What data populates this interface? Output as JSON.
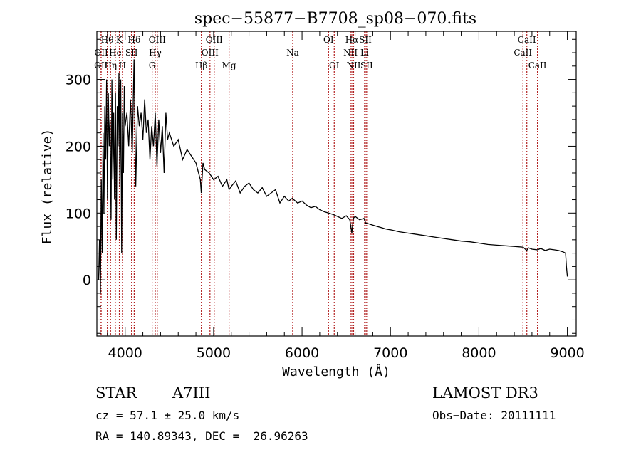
{
  "chart_data": {
    "type": "line",
    "title": "spec−55877−B7708_sp08−070.fits",
    "xlabel": "Wavelength (Å)",
    "ylabel": "Flux (relative)",
    "xlim": [
      3680,
      9100
    ],
    "ylim": [
      -84,
      372
    ],
    "xticks": [
      4000,
      5000,
      6000,
      7000,
      8000,
      9000
    ],
    "xtick_labels": [
      "4000",
      "5000",
      "6000",
      "7000",
      "8000",
      "9000"
    ],
    "yticks": [
      0,
      100,
      200,
      300
    ],
    "ytick_labels": [
      "0",
      "100",
      "200",
      "300"
    ],
    "x_minor_step": 200,
    "y_minor_step": 20,
    "grid": false,
    "series": [
      {
        "name": "spectrum",
        "color": "#000000",
        "x": [
          3700,
          3710,
          3720,
          3730,
          3740,
          3750,
          3760,
          3770,
          3780,
          3790,
          3800,
          3810,
          3820,
          3830,
          3840,
          3850,
          3860,
          3870,
          3880,
          3890,
          3900,
          3910,
          3920,
          3930,
          3940,
          3950,
          3960,
          3970,
          3980,
          3990,
          4000,
          4020,
          4040,
          4060,
          4080,
          4100,
          4120,
          4140,
          4160,
          4180,
          4200,
          4220,
          4240,
          4260,
          4280,
          4300,
          4320,
          4340,
          4360,
          4380,
          4400,
          4420,
          4440,
          4460,
          4480,
          4500,
          4550,
          4600,
          4650,
          4700,
          4750,
          4800,
          4850,
          4861,
          4880,
          4900,
          4950,
          5000,
          5050,
          5100,
          5150,
          5175,
          5200,
          5250,
          5300,
          5350,
          5400,
          5450,
          5500,
          5550,
          5600,
          5650,
          5700,
          5750,
          5800,
          5850,
          5890,
          5950,
          6000,
          6050,
          6100,
          6150,
          6200,
          6250,
          6300,
          6350,
          6400,
          6450,
          6500,
          6540,
          6563,
          6580,
          6600,
          6650,
          6700,
          6720,
          6750,
          6800,
          6850,
          6900,
          6950,
          7000,
          7100,
          7200,
          7300,
          7400,
          7500,
          7600,
          7700,
          7800,
          7900,
          8000,
          8100,
          8200,
          8300,
          8400,
          8500,
          8540,
          8560,
          8600,
          8662,
          8700,
          8750,
          8800,
          8850,
          8900,
          8950,
          8980,
          8990,
          9000
        ],
        "y": [
          0,
          60,
          -20,
          150,
          40,
          220,
          100,
          260,
          180,
          300,
          120,
          280,
          200,
          240,
          90,
          300,
          150,
          250,
          120,
          280,
          60,
          260,
          200,
          310,
          140,
          300,
          40,
          250,
          160,
          290,
          230,
          250,
          200,
          270,
          190,
          330,
          140,
          260,
          230,
          250,
          210,
          270,
          220,
          240,
          180,
          230,
          200,
          250,
          170,
          240,
          190,
          230,
          160,
          250,
          210,
          220,
          200,
          210,
          180,
          195,
          185,
          175,
          150,
          130,
          175,
          165,
          160,
          150,
          155,
          140,
          150,
          135,
          140,
          148,
          130,
          140,
          145,
          135,
          130,
          138,
          125,
          130,
          135,
          115,
          125,
          118,
          122,
          115,
          118,
          112,
          108,
          110,
          105,
          102,
          100,
          98,
          95,
          92,
          96,
          90,
          70,
          92,
          95,
          90,
          92,
          85,
          84,
          82,
          80,
          78,
          76,
          75,
          72,
          70,
          68,
          66,
          64,
          62,
          60,
          58,
          57,
          55,
          53,
          52,
          51,
          50,
          49,
          44,
          48,
          46,
          45,
          47,
          44,
          46,
          45,
          44,
          42,
          40,
          20,
          5
        ]
      }
    ],
    "reference_lines": [
      {
        "name": "OII",
        "wavelength": 3727,
        "row": 2
      },
      {
        "name": "OII",
        "wavelength": 3729,
        "row": 1
      },
      {
        "name": "Hθ",
        "wavelength": 3798,
        "row": 0
      },
      {
        "name": "Hη",
        "wavelength": 3835,
        "row": 2
      },
      {
        "name": "He",
        "wavelength": 3889,
        "row": 1
      },
      {
        "name": "K",
        "wavelength": 3934,
        "row": 0
      },
      {
        "name": "H",
        "wavelength": 3969,
        "row": 2
      },
      {
        "name": "SII",
        "wavelength": 4072,
        "row": 1
      },
      {
        "name": "Hδ",
        "wavelength": 4102,
        "row": 0
      },
      {
        "name": "G",
        "wavelength": 4305,
        "row": 2
      },
      {
        "name": "Hγ",
        "wavelength": 4340,
        "row": 1
      },
      {
        "name": "OIII",
        "wavelength": 4363,
        "row": 0
      },
      {
        "name": "Hβ",
        "wavelength": 4861,
        "row": 2
      },
      {
        "name": "OIII",
        "wavelength": 4959,
        "row": 1
      },
      {
        "name": "OIII",
        "wavelength": 5007,
        "row": 0
      },
      {
        "name": "Mg",
        "wavelength": 5175,
        "row": 2
      },
      {
        "name": "Na",
        "wavelength": 5894,
        "row": 1
      },
      {
        "name": "OI",
        "wavelength": 6300,
        "row": 0
      },
      {
        "name": "OI",
        "wavelength": 6364,
        "row": 2
      },
      {
        "name": "NII",
        "wavelength": 6548,
        "row": 1
      },
      {
        "name": "Hα",
        "wavelength": 6563,
        "row": 0
      },
      {
        "name": "NII",
        "wavelength": 6583,
        "row": 2
      },
      {
        "name": "Li",
        "wavelength": 6707,
        "row": 1
      },
      {
        "name": "SII",
        "wavelength": 6716,
        "row": 0
      },
      {
        "name": "SII",
        "wavelength": 6731,
        "row": 2
      },
      {
        "name": "CaII",
        "wavelength": 8498,
        "row": 1
      },
      {
        "name": "CaII",
        "wavelength": 8542,
        "row": 0
      },
      {
        "name": "CaII",
        "wavelength": 8662,
        "row": 2
      }
    ],
    "reference_line_color": "#b22222"
  },
  "info": {
    "object_class": "STAR",
    "subclass": "A7III",
    "survey": "LAMOST DR3",
    "redshift": "cz = 57.1 ± 25.0 km/s",
    "obs_date": "Obs−Date: 20111111",
    "coords": "RA = 140.89343, DEC =  26.96263"
  }
}
